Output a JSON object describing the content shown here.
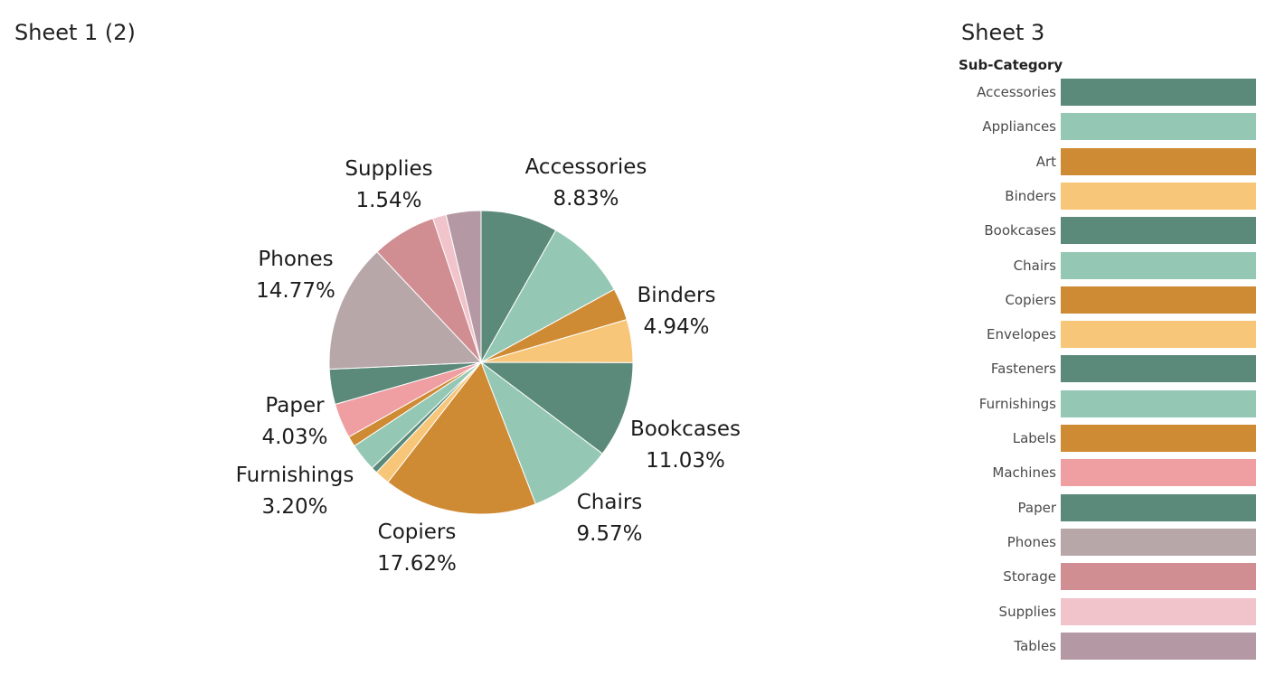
{
  "sheets": {
    "left_title": "Sheet 1 (2)",
    "right_title": "Sheet 3",
    "legend_header": "Sub-Category"
  },
  "colors": {
    "teal": "#5b8a7a",
    "mint": "#95c8b4",
    "orange": "#cf8a34",
    "light_orange": "#f7c678",
    "pink": "#ef9ea2",
    "taupe": "#b8a7a9",
    "rose": "#d08e93",
    "light_pink": "#f1c3cb",
    "mauve": "#b499a4"
  },
  "legend_items": [
    {
      "label": "Accessories",
      "color": "#5b8a7a"
    },
    {
      "label": "Appliances",
      "color": "#95c8b4"
    },
    {
      "label": "Art",
      "color": "#cf8a34"
    },
    {
      "label": "Binders",
      "color": "#f7c678"
    },
    {
      "label": "Bookcases",
      "color": "#5b8a7a"
    },
    {
      "label": "Chairs",
      "color": "#95c8b4"
    },
    {
      "label": "Copiers",
      "color": "#cf8a34"
    },
    {
      "label": "Envelopes",
      "color": "#f7c678"
    },
    {
      "label": "Fasteners",
      "color": "#5b8a7a"
    },
    {
      "label": "Furnishings",
      "color": "#95c8b4"
    },
    {
      "label": "Labels",
      "color": "#cf8a34"
    },
    {
      "label": "Machines",
      "color": "#ef9ea2"
    },
    {
      "label": "Paper",
      "color": "#5b8a7a"
    },
    {
      "label": "Phones",
      "color": "#b8a7a9"
    },
    {
      "label": "Storage",
      "color": "#d08e93"
    },
    {
      "label": "Supplies",
      "color": "#f1c3cb"
    },
    {
      "label": "Tables",
      "color": "#b499a4"
    }
  ],
  "chart_data": {
    "type": "pie",
    "title": "Sheet 1 (2)",
    "slices": [
      {
        "name": "Accessories",
        "value": 8.83,
        "color": "#5b8a7a",
        "label": "Accessories",
        "pct": "8.83%"
      },
      {
        "name": "Appliances",
        "value": 9.5,
        "color": "#95c8b4"
      },
      {
        "name": "Art",
        "value": 3.7,
        "color": "#cf8a34"
      },
      {
        "name": "Binders",
        "value": 4.94,
        "color": "#f7c678",
        "label": "Binders",
        "pct": "4.94%"
      },
      {
        "name": "Bookcases",
        "value": 11.03,
        "color": "#5b8a7a",
        "label": "Bookcases",
        "pct": "11.03%"
      },
      {
        "name": "Chairs",
        "value": 9.57,
        "color": "#95c8b4",
        "label": "Chairs",
        "pct": "9.57%"
      },
      {
        "name": "Copiers",
        "value": 17.62,
        "color": "#cf8a34",
        "label": "Copiers",
        "pct": "17.62%"
      },
      {
        "name": "Envelopes",
        "value": 1.7,
        "color": "#f7c678"
      },
      {
        "name": "Fasteners",
        "value": 0.7,
        "color": "#5b8a7a"
      },
      {
        "name": "Furnishings",
        "value": 3.2,
        "color": "#95c8b4",
        "label": "Furnishings",
        "pct": "3.20%"
      },
      {
        "name": "Labels",
        "value": 1.2,
        "color": "#cf8a34"
      },
      {
        "name": "Machines",
        "value": 4.0,
        "color": "#ef9ea2"
      },
      {
        "name": "Paper",
        "value": 4.03,
        "color": "#5b8a7a",
        "label": "Paper",
        "pct": "4.03%"
      },
      {
        "name": "Phones",
        "value": 14.77,
        "color": "#b8a7a9",
        "label": "Phones",
        "pct": "14.77%"
      },
      {
        "name": "Storage",
        "value": 7.4,
        "color": "#d08e93"
      },
      {
        "name": "Supplies",
        "value": 1.54,
        "color": "#f1c3cb",
        "label": "Supplies",
        "pct": "1.54%"
      },
      {
        "name": "Tables",
        "value": 4.0,
        "color": "#b499a4"
      }
    ],
    "legend_title": "Sub-Category"
  }
}
